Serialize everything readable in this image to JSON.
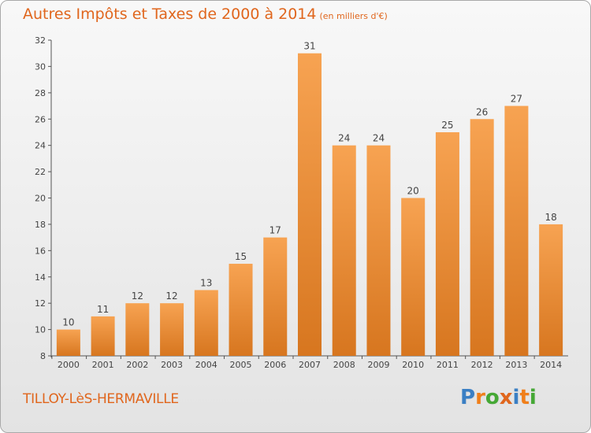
{
  "title": "Autres Impôts et Taxes de 2000 à 2014",
  "subtitle": "(en milliers d'€)",
  "place": "TILLOY-LèS-HERMAVILLE",
  "logo": {
    "letters": [
      "P",
      "r",
      "o",
      "x",
      "i",
      "t",
      "i"
    ],
    "colors": [
      "#3a7fc4",
      "#f07f1a",
      "#45a835",
      "#e0661d",
      "#3a7fc4",
      "#f07f1a",
      "#45a835"
    ]
  },
  "colors": {
    "bar_light": "#f7a352",
    "bar_dark": "#d7761f",
    "text": "#e0661d",
    "axis": "#555555"
  },
  "chart_data": {
    "type": "bar",
    "categories": [
      "2000",
      "2001",
      "2002",
      "2003",
      "2004",
      "2005",
      "2006",
      "2007",
      "2008",
      "2009",
      "2010",
      "2011",
      "2012",
      "2013",
      "2014"
    ],
    "values": [
      10,
      11,
      12,
      12,
      13,
      15,
      17,
      31,
      24,
      24,
      20,
      25,
      26,
      27,
      18
    ],
    "ylim": [
      8,
      32
    ],
    "yticks": [
      8,
      10,
      12,
      14,
      16,
      18,
      20,
      22,
      24,
      26,
      28,
      30,
      32
    ],
    "grid": false,
    "legend": "none"
  }
}
